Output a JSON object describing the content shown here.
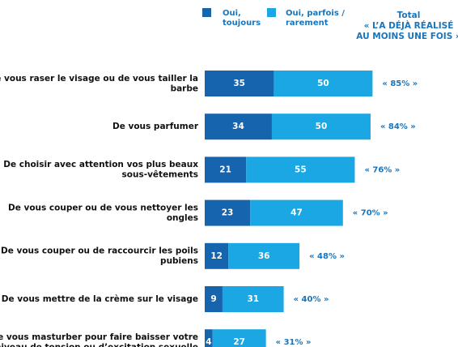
{
  "chart_data": {
    "type": "stacked-bar",
    "categories": [
      "De vous raser le visage ou de vous tailler la\nbarbe",
      "De vous parfumer",
      "De choisir avec attention vos plus beaux\nsous-vêtements",
      "De vous couper ou de vous nettoyer les\nongles",
      "De vous couper ou de raccourcir les poils\npubiens",
      "De vous mettre de la crème sur le visage",
      "De vous masturber pour faire baisser votre\nniveau de tension ou d’excitation sexuelle"
    ],
    "series": [
      {
        "name": "Oui,\ntoujours",
        "color": "#1764ae",
        "values": [
          35,
          34,
          21,
          23,
          12,
          9,
          4
        ]
      },
      {
        "name": "Oui, parfois /\nrarement",
        "color": "#1aa7e4",
        "values": [
          50,
          50,
          55,
          47,
          36,
          31,
          27
        ]
      }
    ],
    "totals": {
      "title": "Total\n« L’A DÉJÀ RÉALISÉ\nAU MOINS UNE FOIS »",
      "values": [
        85,
        84,
        76,
        70,
        48,
        40,
        31
      ],
      "value_labels": [
        "« 85% »",
        "« 84% »",
        "« 76% »",
        "« 70% »",
        "« 48% »",
        "« 40% »",
        "« 31% »"
      ]
    }
  }
}
